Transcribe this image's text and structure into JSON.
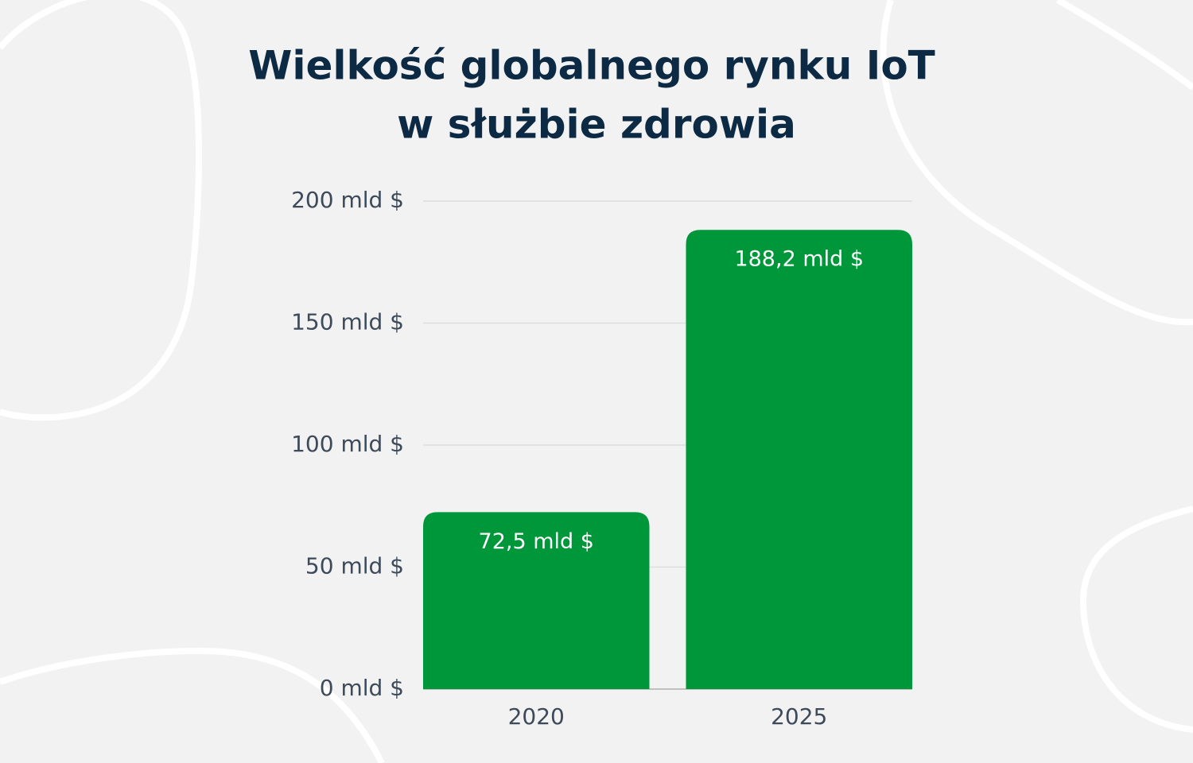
{
  "chart_data": {
    "type": "bar",
    "title": [
      "Wielkość globalnego rynku IoT",
      "w służbie zdrowia"
    ],
    "categories": [
      "2020",
      "2025"
    ],
    "values": [
      72.5,
      188.2
    ],
    "value_labels": [
      "72,5 mld $",
      "188,2 mld $"
    ],
    "color": "#00963a",
    "ylim": [
      0,
      200
    ],
    "yticks": [
      {
        "value": 0,
        "label": "0 mld $"
      },
      {
        "value": 50,
        "label": "50 mld $"
      },
      {
        "value": 100,
        "label": "100 mld $"
      },
      {
        "value": 150,
        "label": "150 mld $"
      },
      {
        "value": 200,
        "label": "200 mld $"
      }
    ],
    "grid": true
  }
}
